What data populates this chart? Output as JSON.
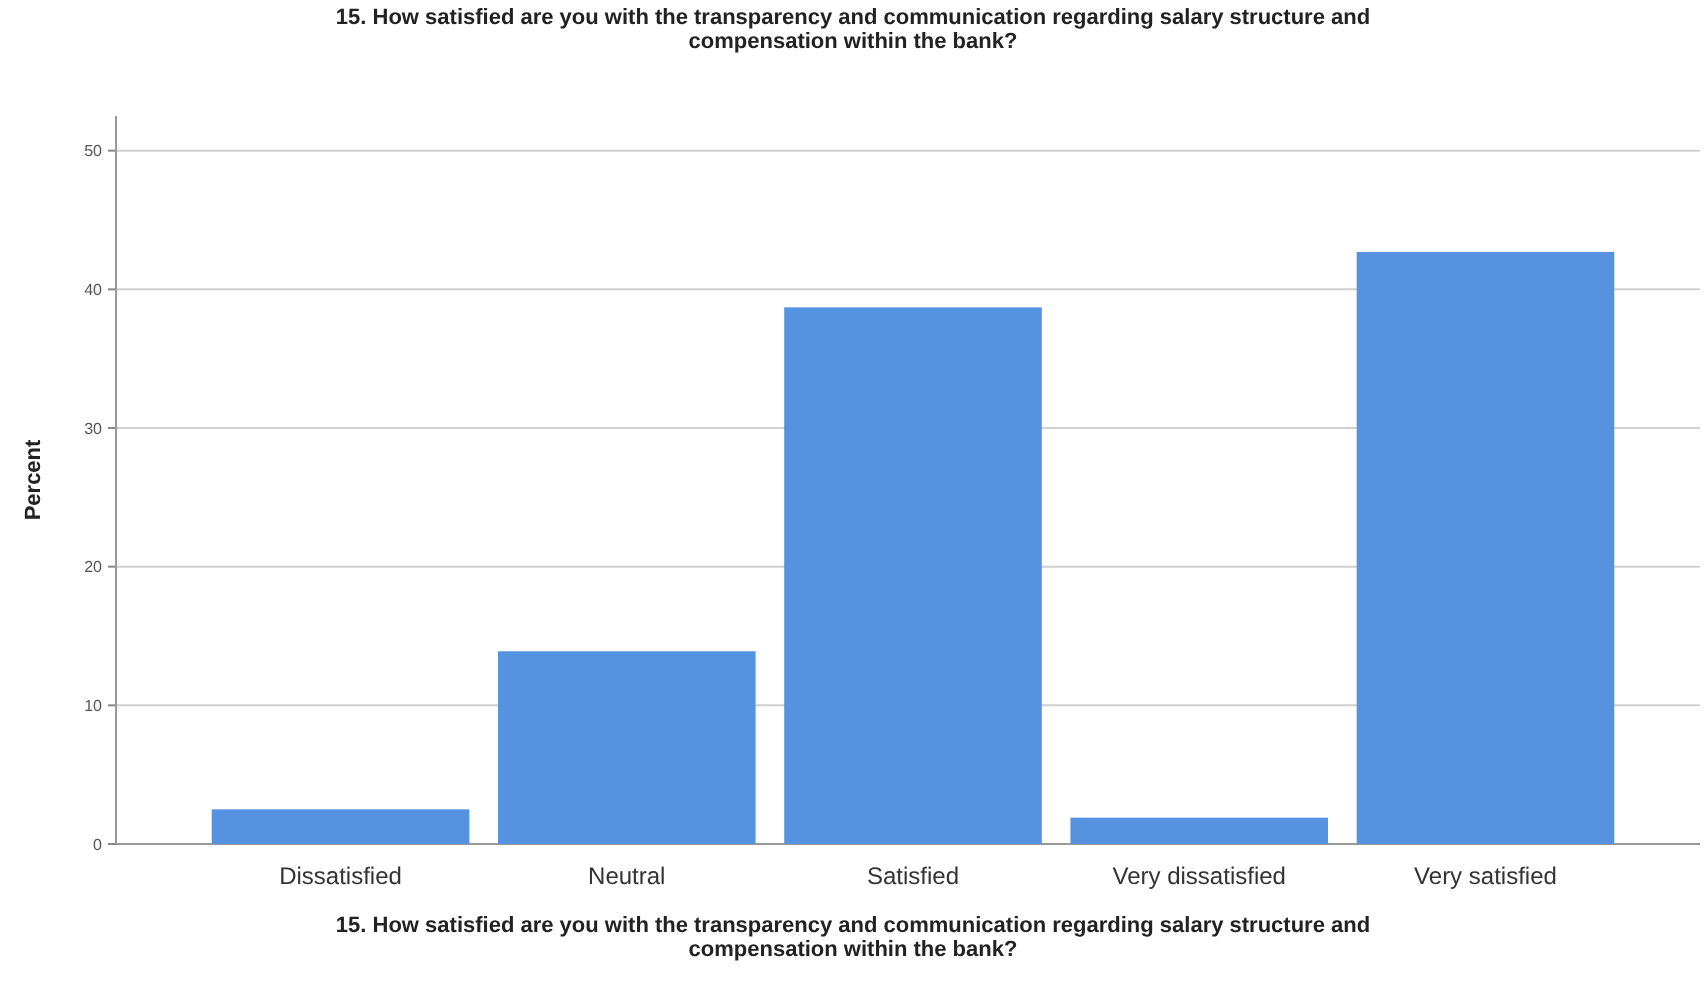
{
  "chart_data": {
    "type": "bar",
    "title": "15.  How satisfied are you with the transparency and communication regarding salary structure and compensation within the bank?",
    "xlabel": "15.  How satisfied are you with the transparency and communication regarding salary structure and compensation within the bank?",
    "ylabel": "Percent",
    "categories": [
      "Dissatisfied",
      "Neutral",
      "Satisfied",
      "Very dissatisfied",
      "Very satisfied"
    ],
    "values": [
      2.5,
      13.9,
      38.7,
      1.9,
      42.7
    ],
    "color": "#5592e0",
    "ylim": [
      0,
      52.5
    ],
    "yticks": [
      0,
      10,
      20,
      30,
      40,
      50
    ],
    "grid": "y"
  }
}
